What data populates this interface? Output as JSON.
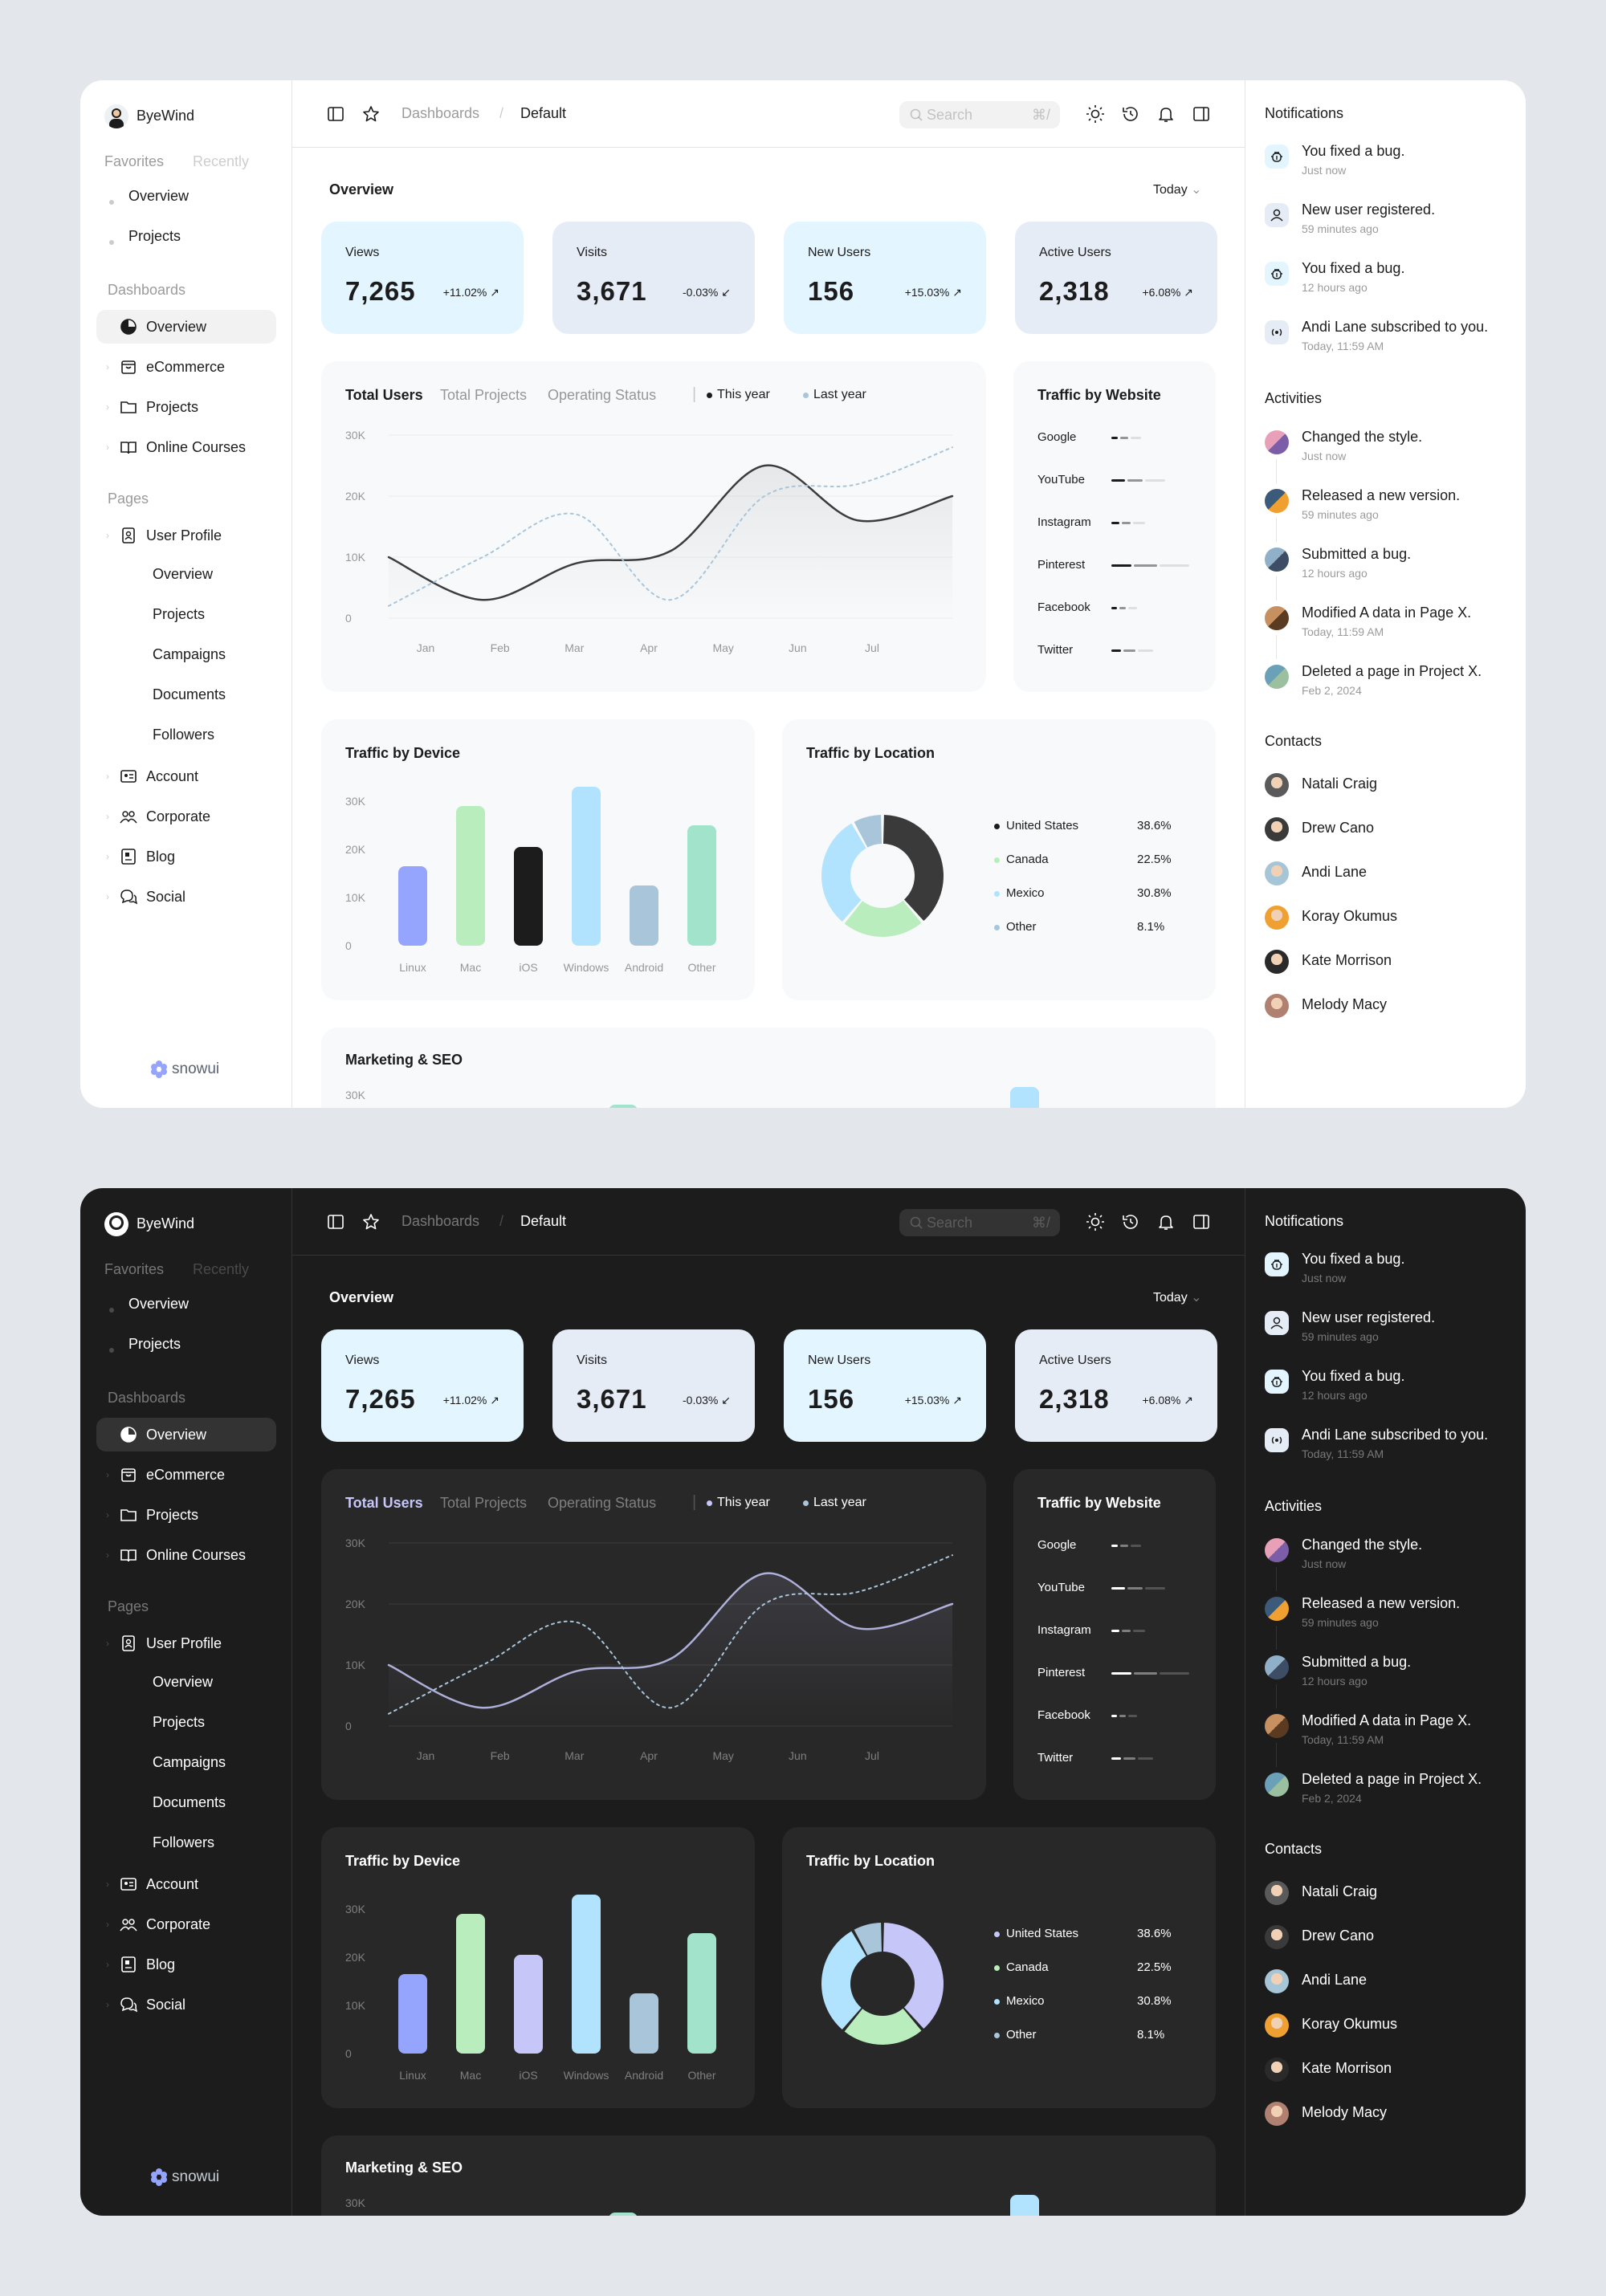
{
  "user": {
    "name": "ByeWind"
  },
  "sidebar": {
    "tabs": [
      "Favorites",
      "Recently"
    ],
    "favorites": [
      "Overview",
      "Projects"
    ],
    "dashboards_title": "Dashboards",
    "dashboards": [
      "Overview",
      "eCommerce",
      "Projects",
      "Online Courses"
    ],
    "pages_title": "Pages",
    "user_profile": "User Profile",
    "user_profile_sub": [
      "Overview",
      "Projects",
      "Campaigns",
      "Documents",
      "Followers"
    ],
    "pages": [
      "Account",
      "Corporate",
      "Blog",
      "Social"
    ],
    "brand": "snowui"
  },
  "topbar": {
    "breadcrumb": [
      "Dashboards",
      "Default"
    ],
    "search_placeholder": "Search",
    "search_shortcut": "⌘/"
  },
  "overview": {
    "title": "Overview",
    "range": "Today"
  },
  "stats": [
    {
      "title": "Views",
      "value": "7,265",
      "change": "+11.02%"
    },
    {
      "title": "Visits",
      "value": "3,671",
      "change": "-0.03%"
    },
    {
      "title": "New Users",
      "value": "156",
      "change": "+15.03%"
    },
    {
      "title": "Active Users",
      "value": "2,318",
      "change": "+6.08%"
    }
  ],
  "users_chart": {
    "tabs": [
      "Total Users",
      "Total Projects",
      "Operating Status"
    ],
    "legend": [
      "This year",
      "Last year"
    ]
  },
  "traffic_website": {
    "title": "Traffic by Website",
    "sites": [
      "Google",
      "YouTube",
      "Instagram",
      "Pinterest",
      "Facebook",
      "Twitter"
    ]
  },
  "traffic_device": {
    "title": "Traffic by Device"
  },
  "traffic_location": {
    "title": "Traffic by Location"
  },
  "marketing": {
    "title": "Marketing & SEO",
    "first_tick": "30K"
  },
  "chart_data": [
    {
      "type": "line",
      "x": [
        "Jan",
        "Feb",
        "Mar",
        "Apr",
        "May",
        "Jun",
        "Jul"
      ],
      "yticks": [
        "0",
        "10K",
        "20K",
        "30K"
      ],
      "ylim": [
        0,
        30000
      ],
      "series": [
        {
          "name": "This year",
          "values": [
            10000,
            3000,
            9000,
            11000,
            25000,
            16000,
            20000
          ],
          "dash": false
        },
        {
          "name": "Last year",
          "values": [
            2000,
            10000,
            17000,
            3000,
            20000,
            22000,
            28000
          ],
          "dash": true
        }
      ]
    },
    {
      "type": "bar",
      "categories": [
        "Linux",
        "Mac",
        "iOS",
        "Windows",
        "Android",
        "Other"
      ],
      "values": [
        16500,
        29000,
        20500,
        33000,
        12500,
        25000
      ],
      "yticks": [
        "0",
        "10K",
        "20K",
        "30K"
      ],
      "ylim": [
        0,
        33000
      ],
      "colors_light": [
        "#95a4fc",
        "#baedbd",
        "#1c1c1c",
        "#b1e3ff",
        "#a8c5da",
        "#a1e3cb"
      ],
      "colors_dark": [
        "#95a4fc",
        "#baedbd",
        "#c6c7f8",
        "#b1e3ff",
        "#a8c5da",
        "#a1e3cb"
      ]
    },
    {
      "type": "pie",
      "categories": [
        "United States",
        "Canada",
        "Mexico",
        "Other"
      ],
      "values": [
        38.6,
        22.5,
        30.8,
        8.1
      ],
      "labels": [
        "38.6%",
        "22.5%",
        "30.8%",
        "8.1%"
      ],
      "colors_light": [
        "#3a3a3a",
        "#baedbd",
        "#b1e3ff",
        "#a8c5da"
      ],
      "colors_dark": [
        "#c6c7f8",
        "#baedbd",
        "#b1e3ff",
        "#a8c5da"
      ]
    },
    {
      "type": "bar",
      "title": "Traffic by Website",
      "categories": [
        "Google",
        "YouTube",
        "Instagram",
        "Pinterest",
        "Facebook",
        "Twitter"
      ],
      "values": [
        40,
        70,
        45,
        100,
        35,
        55
      ]
    }
  ],
  "notifications": {
    "title": "Notifications",
    "items": [
      {
        "text": "You fixed a bug.",
        "time": "Just now",
        "icon": "bug-icon"
      },
      {
        "text": "New user registered.",
        "time": "59 minutes ago",
        "icon": "user-icon"
      },
      {
        "text": "You fixed a bug.",
        "time": "12 hours ago",
        "icon": "bug-icon"
      },
      {
        "text": "Andi Lane subscribed to you.",
        "time": "Today, 11:59 AM",
        "icon": "broadcast-icon"
      }
    ]
  },
  "activities": {
    "title": "Activities",
    "items": [
      {
        "text": "Changed the style.",
        "time": "Just now"
      },
      {
        "text": "Released a new version.",
        "time": "59 minutes ago"
      },
      {
        "text": "Submitted a bug.",
        "time": "12 hours ago"
      },
      {
        "text": "Modified A data in Page X.",
        "time": "Today, 11:59 AM"
      },
      {
        "text": "Deleted a page in Project X.",
        "time": "Feb 2, 2024"
      }
    ]
  },
  "contacts": {
    "title": "Contacts",
    "items": [
      "Natali Craig",
      "Drew Cano",
      "Andi Lane",
      "Koray Okumus",
      "Kate Morrison",
      "Melody Macy"
    ]
  },
  "colors": {
    "card_blue": "#e3f5ff",
    "card_gray": "#e5ecf6",
    "accent_purple": "#c6c7f8"
  }
}
